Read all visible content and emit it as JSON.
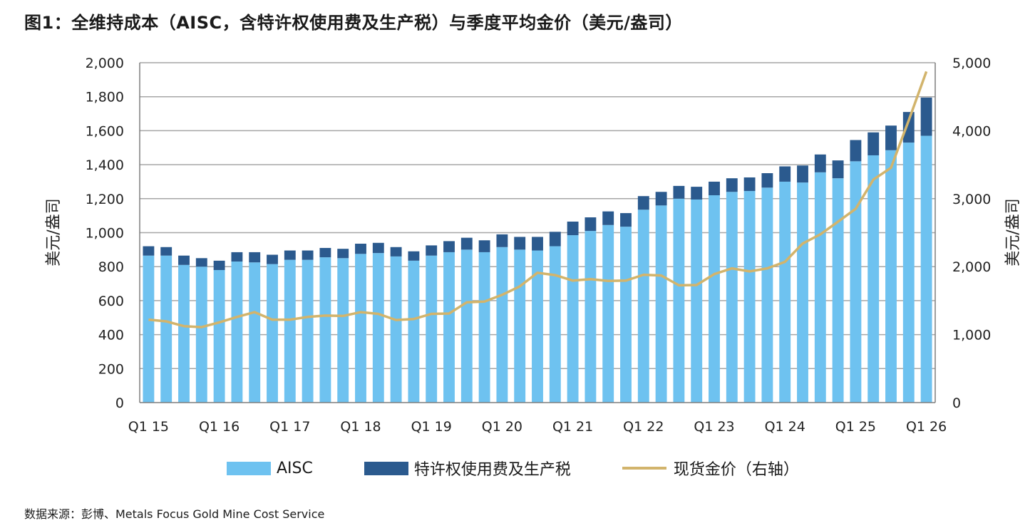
{
  "title": "图1：全维持成本（AISC，含特许权使用费及生产税）与季度平均金价（美元/盎司）",
  "source": "数据来源：彭博、Metals Focus Gold Mine Cost Service",
  "colors": {
    "aisc": "#6ec2f0",
    "royalty": "#2b5a8e",
    "gold": "#d2b46c",
    "grid": "#a6a6a6",
    "axis": "#7f7f7f"
  },
  "chart_data": {
    "type": "bar",
    "stacked": true,
    "categories": [
      "Q1 15",
      "Q2 15",
      "Q3 15",
      "Q4 15",
      "Q1 16",
      "Q2 16",
      "Q3 16",
      "Q4 16",
      "Q1 17",
      "Q2 17",
      "Q3 17",
      "Q4 17",
      "Q1 18",
      "Q2 18",
      "Q3 18",
      "Q4 18",
      "Q1 19",
      "Q2 19",
      "Q3 19",
      "Q4 19",
      "Q1 20",
      "Q2 20",
      "Q3 20",
      "Q4 20",
      "Q1 21",
      "Q2 21",
      "Q3 21",
      "Q4 21",
      "Q1 22",
      "Q2 22",
      "Q3 22",
      "Q4 22",
      "Q1 23",
      "Q2 23",
      "Q3 23",
      "Q4 23",
      "Q1 24",
      "Q2 24",
      "Q3 24",
      "Q4 24",
      "Q1 25",
      "Q2 25",
      "Q3 25",
      "Q4 25",
      "Q1 26"
    ],
    "x_tick_labels": [
      "Q1 15",
      "Q1 16",
      "Q1 17",
      "Q1 18",
      "Q1 19",
      "Q1 20",
      "Q1 21",
      "Q1 22",
      "Q1 23",
      "Q1 24",
      "Q1 25",
      "Q1 26"
    ],
    "series": [
      {
        "name": "AISC",
        "type": "bar",
        "axis": "left",
        "values": [
          865,
          865,
          810,
          800,
          780,
          830,
          825,
          815,
          840,
          840,
          855,
          850,
          875,
          880,
          860,
          835,
          865,
          885,
          900,
          885,
          915,
          900,
          895,
          920,
          985,
          1010,
          1045,
          1035,
          1135,
          1160,
          1200,
          1195,
          1220,
          1240,
          1245,
          1265,
          1300,
          1295,
          1355,
          1320,
          1420,
          1455,
          1485,
          1530,
          1570
        ]
      },
      {
        "name": "特许权使用费及生产税",
        "type": "bar",
        "axis": "left",
        "values": [
          55,
          50,
          55,
          50,
          55,
          55,
          60,
          55,
          55,
          55,
          55,
          55,
          60,
          60,
          55,
          55,
          60,
          65,
          70,
          70,
          75,
          75,
          80,
          85,
          80,
          80,
          80,
          80,
          80,
          80,
          75,
          75,
          80,
          80,
          80,
          85,
          90,
          100,
          105,
          105,
          125,
          135,
          145,
          180,
          225
        ]
      },
      {
        "name": "现货金价（右轴）",
        "type": "line",
        "axis": "right",
        "values": [
          1220,
          1195,
          1125,
          1110,
          1180,
          1260,
          1330,
          1220,
          1220,
          1260,
          1280,
          1275,
          1330,
          1305,
          1215,
          1230,
          1305,
          1310,
          1475,
          1485,
          1585,
          1710,
          1910,
          1875,
          1795,
          1815,
          1790,
          1795,
          1880,
          1870,
          1725,
          1730,
          1890,
          1975,
          1930,
          1975,
          2070,
          2340,
          2475,
          2660,
          2850,
          3280,
          3455,
          4150,
          4870
        ]
      }
    ],
    "ylabel": "美元/盎司",
    "y2label": "美元/盎司",
    "ylim": [
      0,
      2000
    ],
    "y2lim": [
      0,
      5000
    ],
    "yticks": [
      "0",
      "200",
      "400",
      "600",
      "800",
      "1,000",
      "1,200",
      "1,400",
      "1,600",
      "1,800",
      "2,000"
    ],
    "y2ticks": [
      "0",
      "1,000",
      "2,000",
      "3,000",
      "4,000",
      "5,000"
    ],
    "grid": true,
    "legend_position": "bottom"
  }
}
